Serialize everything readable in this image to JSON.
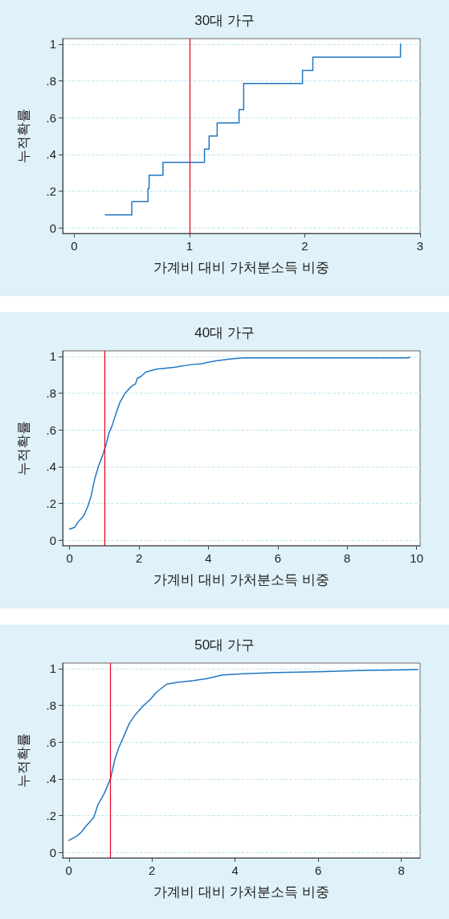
{
  "chart_data": [
    {
      "type": "step",
      "title": "30대 가구",
      "xlabel": "가계비 대비 가처분소득 비중",
      "ylabel": "누적확률",
      "grid": "y",
      "marker": "none",
      "line_style": "solid",
      "series": [
        {
          "color": "#1f77c4",
          "x": [
            0.27,
            0.5,
            0.64,
            0.65,
            0.77,
            1.13,
            1.17,
            1.24,
            1.43,
            1.47,
            1.98,
            2.07,
            2.83
          ],
          "values": [
            0.071,
            0.143,
            0.214,
            0.286,
            0.357,
            0.429,
            0.5,
            0.571,
            0.643,
            0.786,
            0.857,
            0.929,
            1.0
          ]
        }
      ],
      "ref_lines": [
        {
          "axis": "x",
          "value": 1,
          "color": "#e3001b"
        }
      ],
      "xlim": [
        -0.1,
        3
      ],
      "xticks": [
        0,
        1,
        2,
        3
      ],
      "ylim": [
        -0.03,
        1.03
      ],
      "yticks": [
        {
          "value": 0,
          "label": "0"
        },
        {
          "value": 0.2,
          "label": ".2"
        },
        {
          "value": 0.4,
          "label": ".4"
        },
        {
          "value": 0.6,
          "label": ".6"
        },
        {
          "value": 0.8,
          "label": ".8"
        },
        {
          "value": 1,
          "label": "1"
        }
      ]
    },
    {
      "type": "line",
      "title": "40대 가구",
      "xlabel": "가계비 대비 가처분소득 비중",
      "ylabel": "누적확률",
      "grid": "y",
      "marker": "none",
      "line_style": "solid",
      "series": [
        {
          "color": "#1f77c4",
          "x": [
            0,
            0.15,
            0.25,
            0.4,
            0.52,
            0.62,
            0.72,
            0.83,
            0.95,
            1.05,
            1.13,
            1.22,
            1.32,
            1.45,
            1.6,
            1.8,
            1.9,
            1.95,
            2.05,
            2.2,
            2.5,
            3,
            3.5,
            3.8,
            4.2,
            4.6,
            5,
            6,
            8,
            9.75,
            9.8
          ],
          "values": [
            0.06,
            0.07,
            0.1,
            0.13,
            0.18,
            0.24,
            0.33,
            0.4,
            0.46,
            0.52,
            0.58,
            0.62,
            0.68,
            0.75,
            0.8,
            0.84,
            0.85,
            0.88,
            0.89,
            0.915,
            0.93,
            0.94,
            0.955,
            0.96,
            0.975,
            0.985,
            0.992,
            0.992,
            0.992,
            0.992,
            0.995
          ]
        }
      ],
      "ref_lines": [
        {
          "axis": "x",
          "value": 1,
          "color": "#e3001b"
        }
      ],
      "xlim": [
        -0.2,
        10.1
      ],
      "xticks": [
        0,
        2,
        4,
        6,
        8,
        10
      ],
      "ylim": [
        -0.03,
        1.03
      ],
      "yticks": [
        {
          "value": 0,
          "label": "0"
        },
        {
          "value": 0.2,
          "label": ".2"
        },
        {
          "value": 0.4,
          "label": ".4"
        },
        {
          "value": 0.6,
          "label": ".6"
        },
        {
          "value": 0.8,
          "label": ".8"
        },
        {
          "value": 1,
          "label": "1"
        }
      ]
    },
    {
      "type": "line",
      "title": "50대 가구",
      "xlabel": "가계비 대비 가처분소득 비중",
      "ylabel": "누적확률",
      "grid": "y",
      "marker": "none",
      "line_style": "solid",
      "series": [
        {
          "color": "#1f77c4",
          "x": [
            0,
            0.2,
            0.3,
            0.4,
            0.6,
            0.7,
            0.85,
            1.0,
            1.1,
            1.2,
            1.3,
            1.45,
            1.6,
            1.8,
            1.95,
            2.1,
            2.35,
            2.6,
            3.0,
            3.3,
            3.7,
            4.2,
            5,
            6,
            7,
            8.4
          ],
          "values": [
            0.065,
            0.09,
            0.11,
            0.14,
            0.19,
            0.26,
            0.32,
            0.4,
            0.5,
            0.57,
            0.62,
            0.7,
            0.75,
            0.8,
            0.83,
            0.87,
            0.915,
            0.925,
            0.935,
            0.945,
            0.965,
            0.972,
            0.978,
            0.983,
            0.99,
            0.995
          ]
        }
      ],
      "ref_lines": [
        {
          "axis": "x",
          "value": 1,
          "color": "#e3001b"
        }
      ],
      "xlim": [
        -0.15,
        8.45
      ],
      "xticks": [
        0,
        2,
        4,
        6,
        8
      ],
      "ylim": [
        -0.03,
        1.03
      ],
      "yticks": [
        {
          "value": 0,
          "label": "0"
        },
        {
          "value": 0.2,
          "label": ".2"
        },
        {
          "value": 0.4,
          "label": ".4"
        },
        {
          "value": 0.6,
          "label": ".6"
        },
        {
          "value": 0.8,
          "label": ".8"
        },
        {
          "value": 1,
          "label": "1"
        }
      ]
    }
  ]
}
